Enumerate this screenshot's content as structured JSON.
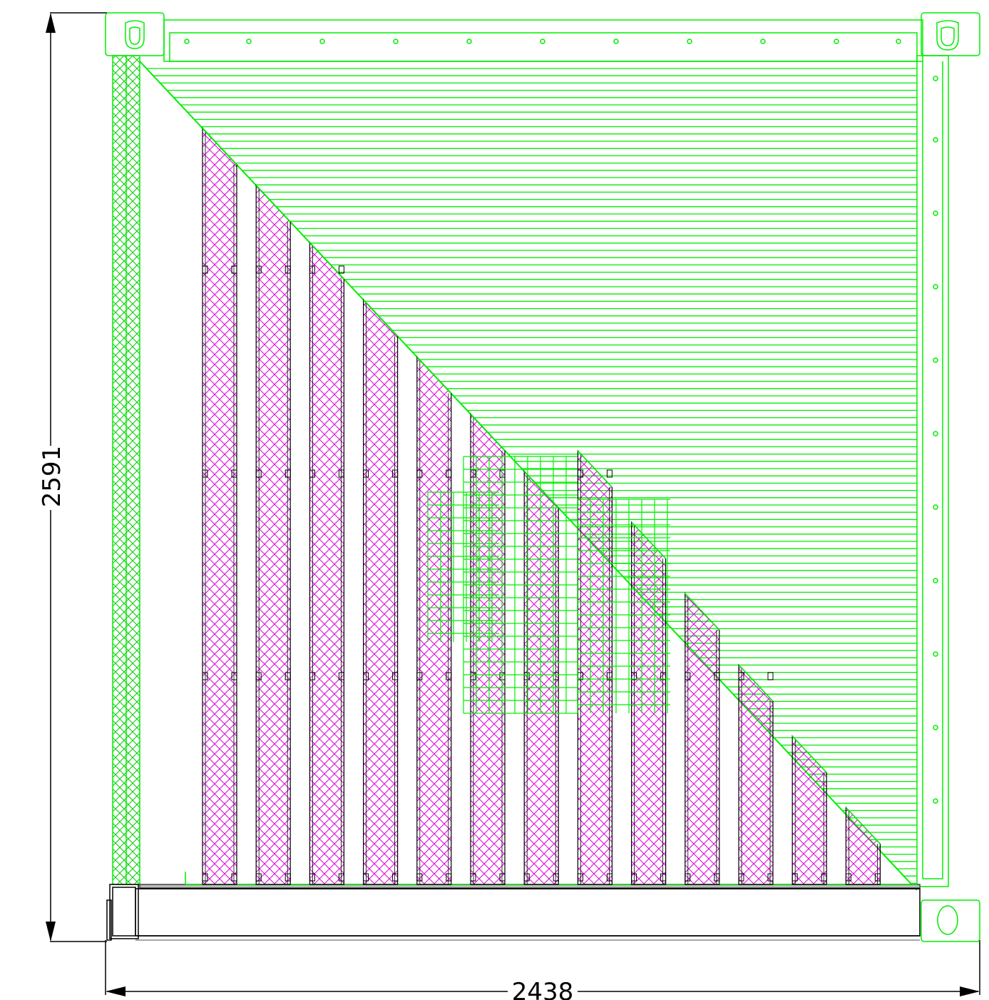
{
  "drawing": {
    "height_dimension": "2591",
    "width_dimension": "2438",
    "racks_total": 13,
    "colors": {
      "frame": "#00ee00",
      "rack_hatch": "#dd00dd",
      "dimension": "#000000",
      "background": "#ffffff"
    },
    "icons": [
      "corner-casting-icon",
      "dimension-arrow-icon"
    ]
  }
}
